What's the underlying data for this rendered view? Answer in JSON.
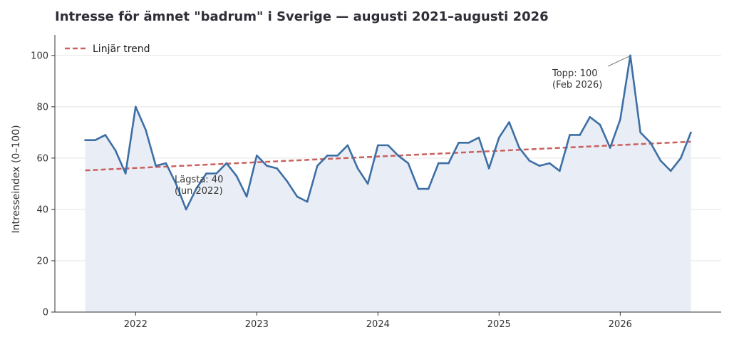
{
  "chart_data": {
    "type": "line",
    "title": "Intresse för ämnet \"badrum\" i Sverige — augusti 2021–augusti 2026",
    "xlabel": "",
    "ylabel": "Intresseindex (0–100)",
    "ylim": [
      0,
      108
    ],
    "yticks": [
      0,
      20,
      40,
      60,
      80,
      100
    ],
    "xticks": [
      {
        "label": "2022",
        "date": "2022-01"
      },
      {
        "label": "2023",
        "date": "2023-01"
      },
      {
        "label": "2024",
        "date": "2024-01"
      },
      {
        "label": "2025",
        "date": "2025-01"
      },
      {
        "label": "2026",
        "date": "2026-01"
      }
    ],
    "grid": "horizontal",
    "legend_position": "top-left",
    "colors": {
      "series": "#3d6fa5",
      "fill": "#e9edf5",
      "trend": "#c9615f",
      "grid": "#e3e3e3"
    },
    "series": [
      {
        "x": [
          "2021-08",
          "2021-09",
          "2021-10",
          "2021-11",
          "2021-12",
          "2022-01",
          "2022-02",
          "2022-03",
          "2022-04",
          "2022-05",
          "2022-06",
          "2022-07",
          "2022-08",
          "2022-09",
          "2022-10",
          "2022-11",
          "2022-12",
          "2023-01",
          "2023-02",
          "2023-03",
          "2023-04",
          "2023-05",
          "2023-06",
          "2023-07",
          "2023-08",
          "2023-09",
          "2023-10",
          "2023-11",
          "2023-12",
          "2024-01",
          "2024-02",
          "2024-03",
          "2024-04",
          "2024-05",
          "2024-06",
          "2024-07",
          "2024-08",
          "2024-09",
          "2024-10",
          "2024-11",
          "2024-12",
          "2025-01",
          "2025-02",
          "2025-03",
          "2025-04",
          "2025-05",
          "2025-06",
          "2025-07",
          "2025-08",
          "2025-09",
          "2025-10",
          "2025-11",
          "2025-12",
          "2026-01",
          "2026-02",
          "2026-03",
          "2026-04",
          "2026-05",
          "2026-06",
          "2026-07",
          "2026-08"
        ],
        "values": [
          67,
          67,
          69,
          63,
          54,
          80,
          71,
          57,
          58,
          50,
          40,
          48,
          54,
          54,
          58,
          53,
          45,
          61,
          57,
          56,
          51,
          45,
          43,
          57,
          61,
          61,
          65,
          56,
          50,
          65,
          65,
          61,
          58,
          48,
          48,
          58,
          58,
          66,
          66,
          68,
          56,
          68,
          74,
          64,
          59,
          57,
          58,
          55,
          69,
          69,
          76,
          73,
          64,
          75,
          100,
          70,
          66,
          59,
          55,
          60,
          70
        ]
      },
      {
        "name": "Linjär trend",
        "type": "line",
        "style": "dashed",
        "x": [
          "2021-08",
          "2026-08"
        ],
        "values": [
          55.2,
          66.4
        ]
      }
    ],
    "annotations": [
      {
        "line1": "Topp: 100",
        "line2": "(Feb 2026)",
        "date": "2026-02",
        "value": 100
      },
      {
        "line1": "Lägsta: 40",
        "line2": "(Jun 2022)",
        "date": "2022-06",
        "value": 40
      }
    ]
  }
}
